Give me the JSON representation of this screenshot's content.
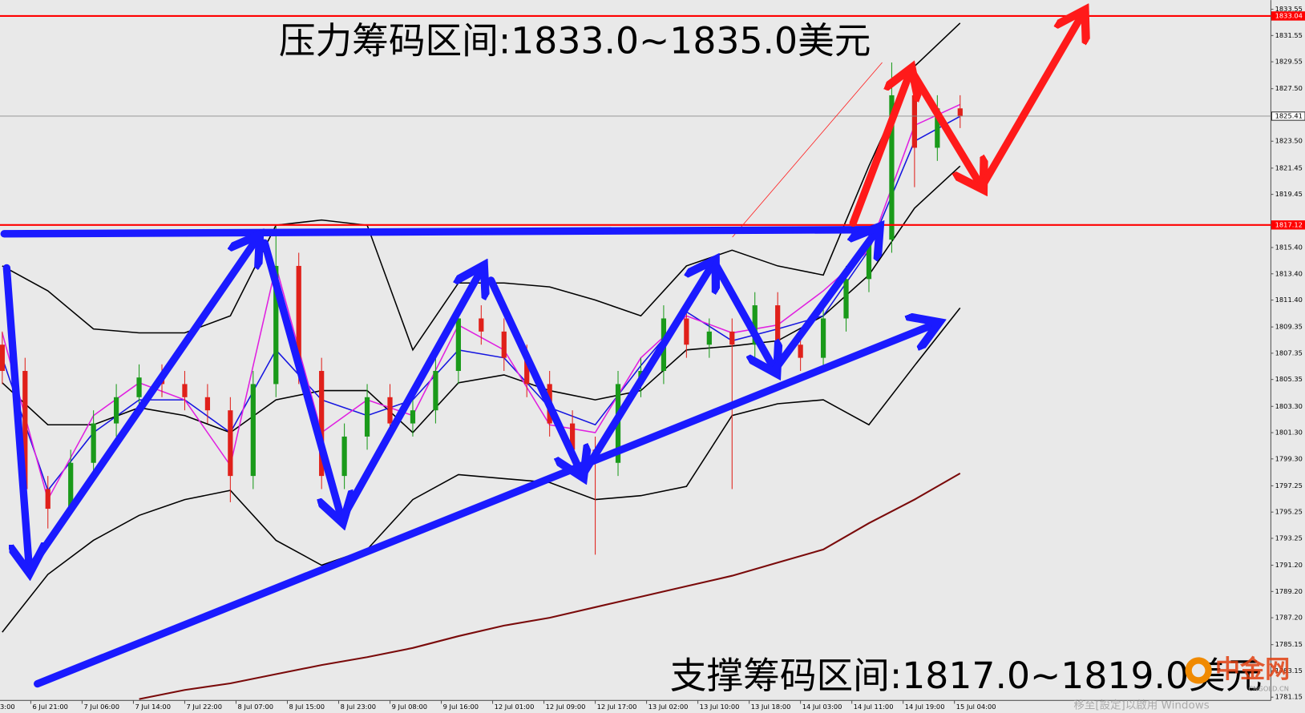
{
  "chart_data": {
    "type": "candlestick",
    "annotations": [
      "压力筹码区间:1833.0~1835.0美元",
      "支撑筹码区间:1817.0~1819.0美元"
    ],
    "x": [
      0,
      4,
      8,
      12,
      16,
      20,
      24,
      28,
      32,
      36,
      40,
      44,
      48,
      52,
      56,
      60,
      64,
      68,
      72,
      76,
      80,
      84,
      88,
      92,
      96,
      100,
      104,
      108,
      112,
      116,
      120,
      124,
      128,
      132,
      136,
      140,
      144,
      148,
      152,
      156,
      160,
      164,
      168
    ],
    "open": [
      1808,
      1806,
      1797,
      1795.5,
      1799,
      1802,
      1804,
      1805.5,
      1805,
      1804,
      1803,
      1798,
      1805,
      1814,
      1806,
      1798,
      1801,
      1804,
      1802,
      1803,
      1806,
      1810,
      1809,
      1807,
      1805,
      1802,
      1800,
      1799,
      1805,
      1806,
      1810,
      1808,
      1809,
      1808,
      1811,
      1808,
      1807,
      1810,
      1813,
      1816,
      1827,
      1823,
      1826
    ],
    "high": [
      1809,
      1807,
      1798,
      1800,
      1803,
      1805,
      1806.5,
      1806.5,
      1806,
      1805,
      1804,
      1806,
      1817,
      1815,
      1807,
      1802,
      1805,
      1805,
      1804,
      1807,
      1811,
      1811,
      1810,
      1808,
      1806,
      1803,
      1801,
      1806,
      1807,
      1811,
      1811,
      1810,
      1810,
      1812,
      1812,
      1809,
      1811,
      1814,
      1817,
      1829.5,
      1828,
      1827,
      1827
    ],
    "low": [
      1805,
      1793,
      1794,
      1795,
      1798,
      1801,
      1803,
      1804,
      1803,
      1802,
      1796,
      1797,
      1804,
      1805,
      1797,
      1797,
      1800,
      1801,
      1801,
      1802,
      1805,
      1808,
      1806,
      1804,
      1801,
      1799,
      1792,
      1798,
      1804,
      1805,
      1807,
      1807,
      1797,
      1807,
      1807,
      1806,
      1806,
      1809,
      1812,
      1815,
      1820,
      1822,
      1824.5
    ],
    "close": [
      1806,
      1797,
      1795.5,
      1799,
      1802,
      1804,
      1805.5,
      1805,
      1804,
      1803,
      1798,
      1805,
      1814,
      1806,
      1798,
      1801,
      1804,
      1802,
      1803,
      1806,
      1810,
      1809,
      1807,
      1805,
      1802,
      1800,
      1799,
      1805,
      1806,
      1810,
      1808,
      1809,
      1808,
      1811,
      1808,
      1807,
      1810,
      1813,
      1816,
      1827,
      1823,
      1826,
      1825.4
    ],
    "up_color": "#1a9a1a",
    "down_color": "#e0201a",
    "line_x": [
      0,
      8,
      16,
      24,
      32,
      40,
      48,
      56,
      64,
      72,
      80,
      88,
      96,
      104,
      112,
      120,
      128,
      136,
      144,
      152,
      160,
      168
    ],
    "lines": [
      {
        "color": "#000000",
        "values": [
          1814.0,
          1812.1,
          1809.2,
          1808.9,
          1808.9,
          1810.2,
          1817.1,
          1817.5,
          1817.1,
          1807.6,
          1812.7,
          1812.7,
          1812.4,
          1811.4,
          1810.2,
          1814.0,
          1815.2,
          1814.0,
          1813.3,
          1821.6,
          1829.2,
          1832.5
        ]
      },
      {
        "color": "#000000",
        "values": [
          1805.1,
          1801.9,
          1801.9,
          1803.2,
          1802.6,
          1801.3,
          1803.8,
          1804.5,
          1804.5,
          1801.3,
          1805.1,
          1805.7,
          1804.5,
          1803.8,
          1804.5,
          1807.6,
          1807.9,
          1808.3,
          1810.2,
          1813.3,
          1818.4,
          1821.6
        ]
      },
      {
        "color": "#000000",
        "values": [
          1786.1,
          1790.5,
          1793.1,
          1795.0,
          1796.2,
          1796.9,
          1793.1,
          1791.2,
          1792.4,
          1796.2,
          1798.1,
          1797.8,
          1797.5,
          1796.2,
          1796.5,
          1797.2,
          1802.6,
          1803.5,
          1803.8,
          1801.9,
          1806.4,
          1810.8
        ]
      },
      {
        "color": "#1515e0",
        "values": [
          1807.0,
          1796.9,
          1801.3,
          1803.8,
          1803.8,
          1801.3,
          1807.6,
          1803.8,
          1802.6,
          1803.8,
          1807.6,
          1807.0,
          1803.2,
          1801.9,
          1806.4,
          1810.5,
          1808.3,
          1809.2,
          1810.2,
          1815.2,
          1823.5,
          1825.4
        ]
      },
      {
        "color": "#e020e0",
        "values": [
          1808.9,
          1796.2,
          1802.6,
          1805.1,
          1803.8,
          1798.8,
          1814.0,
          1801.3,
          1803.8,
          1802.6,
          1809.5,
          1807.6,
          1801.9,
          1801.3,
          1807.0,
          1810.2,
          1808.9,
          1809.5,
          1812.1,
          1815.2,
          1824.7,
          1826.3
        ]
      },
      {
        "color": "#7a0a0a",
        "values": [
          null,
          null,
          null,
          1781.0,
          1781.7,
          1782.2,
          1782.9,
          1783.6,
          1784.2,
          1784.9,
          1785.8,
          1786.6,
          1787.2,
          1788.0,
          1788.8,
          1789.6,
          1790.4,
          1791.4,
          1792.4,
          1794.4,
          1796.2,
          1798.2
        ]
      }
    ],
    "hlines": [
      {
        "value": 1833.04,
        "color": "#ff0000"
      },
      {
        "value": 1817.12,
        "color": "#ff0000"
      },
      {
        "value": 1825.41,
        "color": "#8a8a8a"
      }
    ],
    "xlim": [
      -0.4,
      222.5
    ],
    "ylim": [
      1780.9,
      1834.25
    ],
    "xticks": [
      {
        "value": -4,
        "label": "3:00"
      },
      {
        "value": 5,
        "label": "6 Jul 21:00"
      },
      {
        "value": 14,
        "label": "7 Jul 06:00"
      },
      {
        "value": 23,
        "label": "7 Jul 14:00"
      },
      {
        "value": 32,
        "label": "7 Jul 22:00"
      },
      {
        "value": 41,
        "label": "8 Jul 07:00"
      },
      {
        "value": 50,
        "label": "8 Jul 15:00"
      },
      {
        "value": 59,
        "label": "8 Jul 23:00"
      },
      {
        "value": 68,
        "label": "9 Jul 08:00"
      },
      {
        "value": 77,
        "label": "9 Jul 16:00"
      },
      {
        "value": 86,
        "label": "12 Jul 01:00"
      },
      {
        "value": 95,
        "label": "12 Jul 09:00"
      },
      {
        "value": 104,
        "label": "12 Jul 17:00"
      },
      {
        "value": 113,
        "label": "13 Jul 02:00"
      },
      {
        "value": 122,
        "label": "13 Jul 10:00"
      },
      {
        "value": 131,
        "label": "13 Jul 18:00"
      },
      {
        "value": 140,
        "label": "14 Jul 03:00"
      },
      {
        "value": 149,
        "label": "14 Jul 11:00"
      },
      {
        "value": 158,
        "label": "14 Jul 19:00"
      },
      {
        "value": 167,
        "label": "15 Jul 04:00"
      }
    ],
    "yticks": [
      1833.55,
      1831.55,
      1829.55,
      {
        "value": 1827.5,
        "label": "1827.50"
      },
      {
        "value": 1823.5,
        "label": "1823.50"
      },
      1821.45,
      1819.45,
      {
        "value": 1815.4,
        "label": "1815.40"
      },
      {
        "value": 1813.4,
        "label": "1813.40"
      },
      {
        "value": 1811.4,
        "label": "1811.40"
      },
      1809.35,
      1807.35,
      1805.35,
      {
        "value": 1803.3,
        "label": "1803.30"
      },
      {
        "value": 1801.3,
        "label": "1801.30"
      },
      {
        "value": 1799.3,
        "label": "1799.30"
      },
      1797.25,
      1795.25,
      1793.25,
      {
        "value": 1791.2,
        "label": "1791.20"
      },
      {
        "value": 1789.2,
        "label": "1789.20"
      },
      {
        "value": 1787.2,
        "label": "1787.20"
      },
      1785.15,
      1783.15,
      1781.15
    ],
    "grid": false
  },
  "watermark": {
    "logo": "中金网",
    "site": "CNGOLD.CN",
    "windows": "移至[設定]以啟用 Windows"
  }
}
